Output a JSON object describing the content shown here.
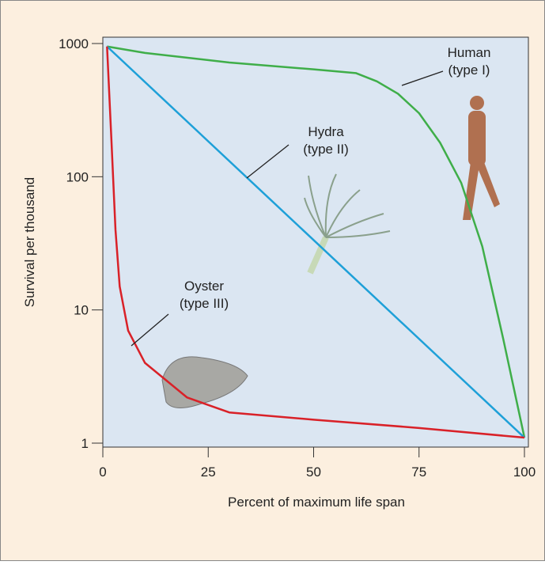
{
  "chart_data": {
    "type": "line",
    "xlabel": "Percent of maximum life span",
    "ylabel": "Survival per thousand",
    "xlim": [
      0,
      100
    ],
    "ylim": [
      1,
      1000
    ],
    "xticks": [
      0,
      25,
      50,
      75,
      100
    ],
    "yticks": [
      1,
      10,
      100,
      1000
    ],
    "yscale": "log",
    "series": [
      {
        "name": "Human",
        "label": "(type I)",
        "color": "#3fae49",
        "x": [
          1,
          10,
          30,
          50,
          60,
          65,
          70,
          75,
          80,
          85,
          90,
          95,
          100
        ],
        "values": [
          950,
          850,
          720,
          640,
          600,
          520,
          420,
          300,
          180,
          90,
          30,
          6,
          1.1
        ]
      },
      {
        "name": "Hydra",
        "label": "(type II)",
        "color": "#1ea0d8",
        "x": [
          1,
          100
        ],
        "values": [
          950,
          1.1
        ]
      },
      {
        "name": "Oyster",
        "label": "(type III)",
        "color": "#d92128",
        "x": [
          1,
          2,
          3,
          4,
          6,
          10,
          20,
          30,
          50,
          75,
          100
        ],
        "values": [
          950,
          200,
          40,
          15,
          7,
          4,
          2.2,
          1.7,
          1.5,
          1.3,
          1.1
        ]
      }
    ]
  }
}
